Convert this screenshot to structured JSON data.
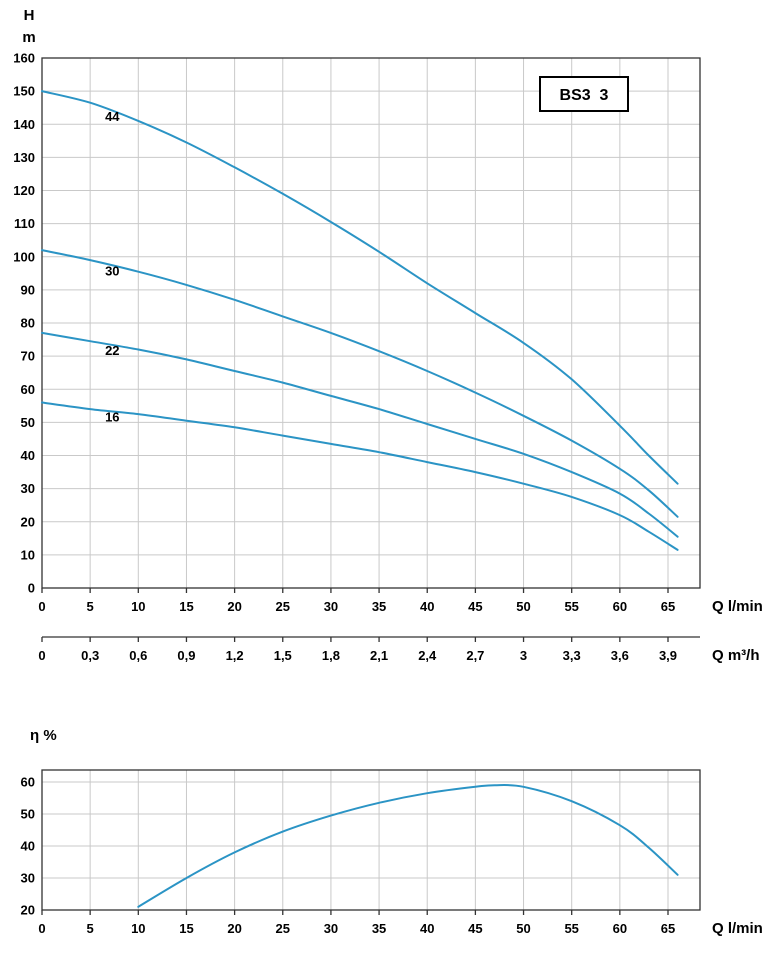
{
  "colors": {
    "curve": "#2b94c5",
    "grid": "#c9c9c9",
    "axis": "#333333",
    "text": "#000000"
  },
  "chart_data": [
    {
      "type": "line",
      "title": "BS3  3",
      "ylabel_lines": [
        "H",
        "m"
      ],
      "xlabel": "Q l/min",
      "x2label": "Q m³/h",
      "xlim": [
        0,
        68
      ],
      "ylim": [
        0,
        160
      ],
      "grid": true,
      "legend": "inline curve labels",
      "yticks": [
        0,
        10,
        20,
        30,
        40,
        50,
        60,
        70,
        80,
        90,
        100,
        110,
        120,
        130,
        140,
        150,
        160
      ],
      "xticks": [
        0,
        5,
        10,
        15,
        20,
        25,
        30,
        35,
        40,
        45,
        50,
        55,
        60,
        65
      ],
      "x2ticks": [
        {
          "q": 0,
          "label": "0"
        },
        {
          "q": 5,
          "label": "0,3"
        },
        {
          "q": 10,
          "label": "0,6"
        },
        {
          "q": 15,
          "label": "0,9"
        },
        {
          "q": 20,
          "label": "1,2"
        },
        {
          "q": 25,
          "label": "1,5"
        },
        {
          "q": 30,
          "label": "1,8"
        },
        {
          "q": 35,
          "label": "2,1"
        },
        {
          "q": 40,
          "label": "2,4"
        },
        {
          "q": 45,
          "label": "2,7"
        },
        {
          "q": 50,
          "label": "3"
        },
        {
          "q": 55,
          "label": "3,3"
        },
        {
          "q": 60,
          "label": "3,6"
        },
        {
          "q": 65,
          "label": "3,9"
        }
      ],
      "series": [
        {
          "name": "44",
          "x": [
            0,
            5,
            10,
            15,
            20,
            25,
            30,
            35,
            40,
            45,
            50,
            55,
            60,
            63,
            66
          ],
          "y": [
            150,
            146.5,
            141,
            134.5,
            127,
            119,
            110.5,
            101.5,
            92,
            83,
            74,
            63,
            49,
            40,
            31.5
          ]
        },
        {
          "name": "30",
          "x": [
            0,
            5,
            10,
            15,
            20,
            25,
            30,
            35,
            40,
            45,
            50,
            55,
            60,
            63,
            66
          ],
          "y": [
            102,
            99,
            95.5,
            91.5,
            87,
            82,
            77,
            71.5,
            65.5,
            59,
            52,
            44.5,
            36,
            29.5,
            21.5
          ]
        },
        {
          "name": "22",
          "x": [
            0,
            5,
            10,
            15,
            20,
            25,
            30,
            35,
            40,
            45,
            50,
            55,
            60,
            63,
            66
          ],
          "y": [
            77,
            74.5,
            72,
            69,
            65.5,
            62,
            58,
            54,
            49.5,
            45,
            40.5,
            35,
            28.5,
            22.5,
            15.5
          ]
        },
        {
          "name": "16",
          "x": [
            0,
            5,
            10,
            15,
            20,
            25,
            30,
            35,
            40,
            45,
            50,
            55,
            60,
            63,
            66
          ],
          "y": [
            56,
            54,
            52.5,
            50.5,
            48.5,
            46,
            43.5,
            41,
            38,
            35,
            31.5,
            27.5,
            22,
            17,
            11.5
          ]
        }
      ]
    },
    {
      "type": "line",
      "ylabel": "η %",
      "xlabel": "Q l/min",
      "xlim": [
        0,
        68
      ],
      "ylim": [
        20,
        64
      ],
      "grid": true,
      "yticks": [
        20,
        30,
        40,
        50,
        60
      ],
      "xticks": [
        0,
        5,
        10,
        15,
        20,
        25,
        30,
        35,
        40,
        45,
        50,
        55,
        60,
        65
      ],
      "series": [
        {
          "name": "efficiency",
          "x": [
            10,
            15,
            20,
            25,
            30,
            35,
            40,
            45,
            47,
            50,
            55,
            60,
            63,
            66
          ],
          "y": [
            21,
            30,
            38,
            44.5,
            49.5,
            53.5,
            56.5,
            58.5,
            59,
            58.5,
            54,
            46.5,
            39.5,
            31
          ]
        }
      ]
    }
  ]
}
